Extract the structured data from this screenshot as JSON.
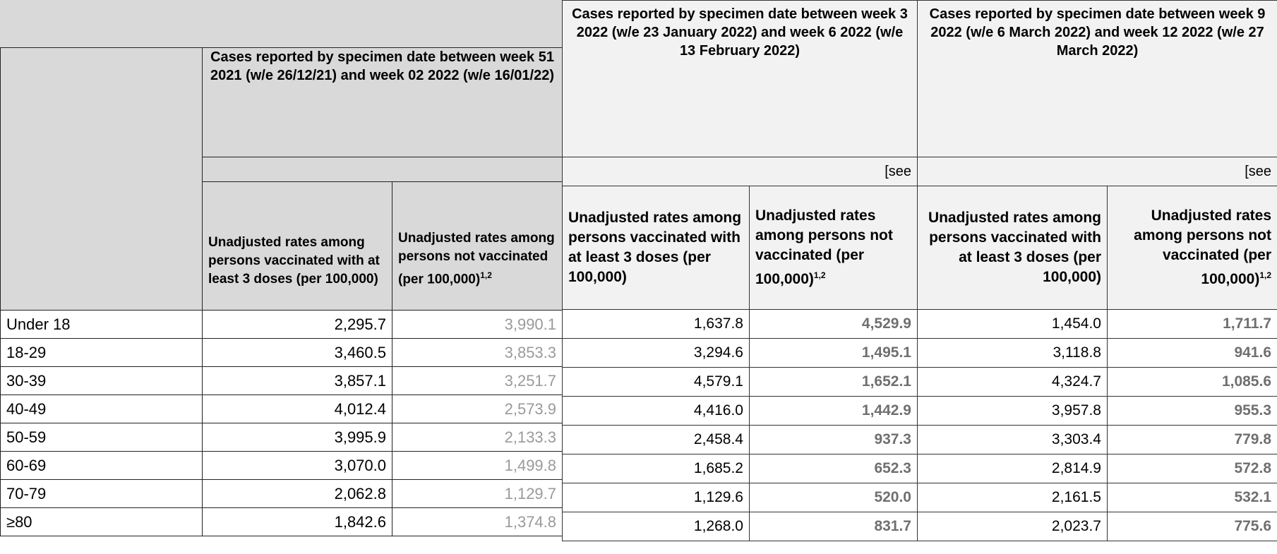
{
  "row_labels": [
    "Under 18",
    "18-29",
    "30-39",
    "40-49",
    "50-59",
    "60-69",
    "70-79",
    "≥80"
  ],
  "panels": [
    {
      "heading": "Cases reported by specimen date between week 51 2021 (w/e 26/12/21) and week 02 2022 (w/e 16/01/22)",
      "columns": [
        {
          "text": "Unadjusted rates among persons vaccinated with at least 3 doses (per 100,000)"
        },
        {
          "text": "Unadjusted rates among persons not vaccinated (per 100,000)",
          "sup": "1,2"
        }
      ],
      "rows": [
        [
          "2,295.7",
          "3,990.1"
        ],
        [
          "3,460.5",
          "3,853.3"
        ],
        [
          "3,857.1",
          "3,251.7"
        ],
        [
          "4,012.4",
          "2,573.9"
        ],
        [
          "3,995.9",
          "2,133.3"
        ],
        [
          "3,070.0",
          "1,499.8"
        ],
        [
          "2,062.8",
          "1,129.7"
        ],
        [
          "1,842.6",
          "1,374.8"
        ]
      ]
    },
    {
      "heading": "Cases reported by specimen date between week 3 2022 (w/e 23 January 2022) and week 6 2022 (w/e 13 February 2022)",
      "note": "[see",
      "columns": [
        {
          "text": "Unadjusted rates among persons vaccinated with at least 3 doses (per 100,000)"
        },
        {
          "text": "Unadjusted rates among persons not vaccinated (per 100,000)",
          "sup": "1,2"
        }
      ],
      "rows": [
        [
          "1,637.8",
          "4,529.9"
        ],
        [
          "3,294.6",
          "1,495.1"
        ],
        [
          "4,579.1",
          "1,652.1"
        ],
        [
          "4,416.0",
          "1,442.9"
        ],
        [
          "2,458.4",
          "937.3"
        ],
        [
          "1,685.2",
          "652.3"
        ],
        [
          "1,129.6",
          "520.0"
        ],
        [
          "1,268.0",
          "831.7"
        ]
      ]
    },
    {
      "heading": "Cases reported by specimen date between week 9 2022 (w/e 6 March 2022) and week 12 2022 (w/e 27 March 2022)",
      "note": "[see",
      "columns": [
        {
          "text": "Unadjusted rates among persons vaccinated with at least 3 doses (per 100,000)"
        },
        {
          "text": "Unadjusted rates among persons not vaccinated (per 100,000)",
          "sup": "1,2"
        }
      ],
      "rows": [
        [
          "1,454.0",
          "1,711.7"
        ],
        [
          "3,118.8",
          "941.6"
        ],
        [
          "4,324.7",
          "1,085.6"
        ],
        [
          "3,957.8",
          "955.3"
        ],
        [
          "3,303.4",
          "779.8"
        ],
        [
          "2,814.9",
          "572.8"
        ],
        [
          "2,161.5",
          "532.1"
        ],
        [
          "2,023.7",
          "775.6"
        ]
      ]
    }
  ]
}
